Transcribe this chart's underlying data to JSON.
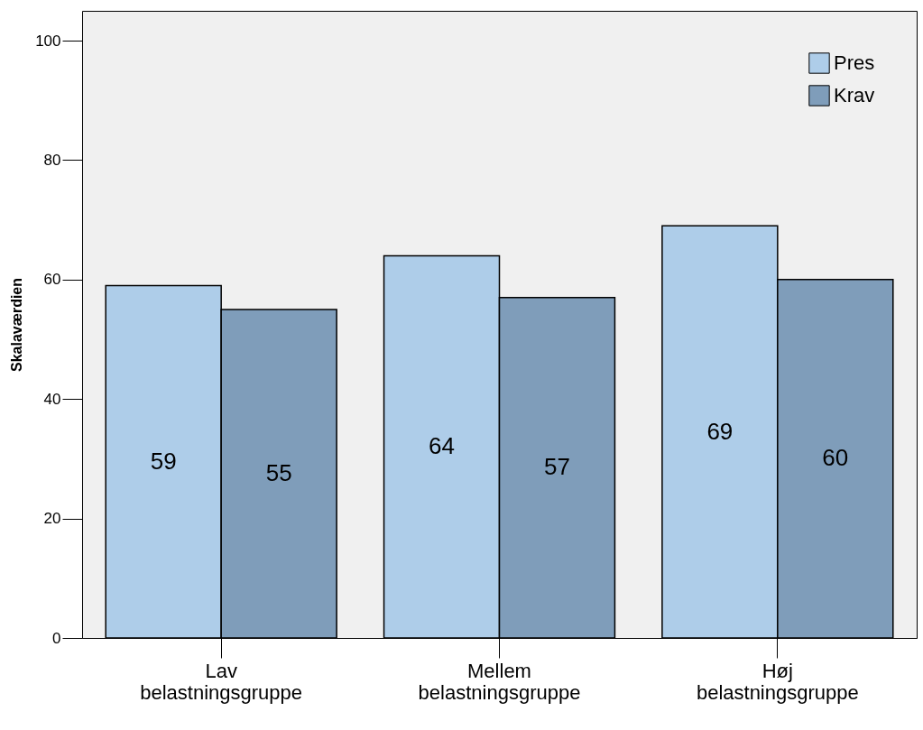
{
  "chart_data": {
    "type": "bar",
    "ylabel": "Skalaværdien",
    "categories": [
      "Lav belastningsgruppe",
      "Mellem belastningsgruppe",
      "Høj belastningsgruppe"
    ],
    "series": [
      {
        "name": "Pres",
        "color": "#aecde9",
        "values": [
          59,
          64,
          69
        ]
      },
      {
        "name": "Krav",
        "color": "#7f9dba",
        "values": [
          55,
          57,
          60
        ]
      }
    ],
    "ylim": [
      0,
      105
    ],
    "yticks": [
      0,
      20,
      40,
      60,
      80,
      100
    ],
    "grid": false,
    "legend": "top right",
    "data_labels": true
  }
}
